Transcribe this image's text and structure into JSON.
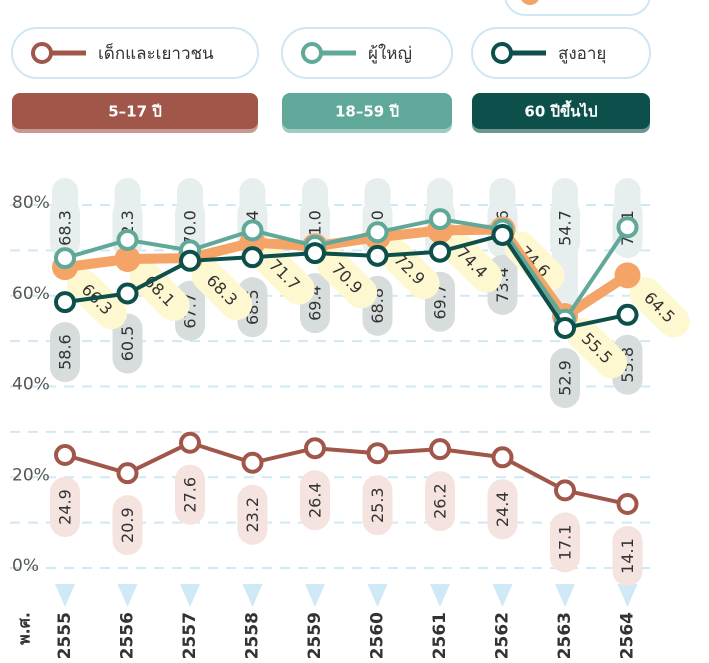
{
  "chart_data": {
    "type": "line",
    "x_label": "พ.ศ.",
    "categories": [
      "2555",
      "2556",
      "2557",
      "2558",
      "2559",
      "2560",
      "2561",
      "2562",
      "2563",
      "2564"
    ],
    "series": [
      {
        "name": "เด็กและเยาวชน",
        "group": "5–17 ปี",
        "color": "#a0574a",
        "values": [
          24.9,
          20.9,
          27.6,
          23.2,
          26.4,
          25.3,
          26.2,
          24.4,
          17.1,
          14.1
        ],
        "value_labels": [
          "24.9",
          "20.9",
          "27.6",
          "23.2",
          "26.4",
          "25.3",
          "26.2",
          "24.4",
          "17.1",
          "14.1"
        ]
      },
      {
        "name": "ผู้ใหญ่",
        "group": "18–59 ปี",
        "color": "#5fa89a",
        "values": [
          68.3,
          72.3,
          70.0,
          74.4,
          71.0,
          74.0,
          76.9,
          74.6,
          54.7,
          75.1
        ],
        "value_labels": [
          "68.3",
          "72.3",
          "70.0",
          "74.4",
          "71.0",
          "74.0",
          "76.9",
          "74.6",
          "54.7",
          "75.1"
        ]
      },
      {
        "name": "สูงอายุ",
        "group": "60 ปีขึ้นไป",
        "color": "#0d4f4a",
        "values": [
          58.6,
          60.5,
          67.7,
          68.5,
          69.4,
          68.8,
          69.7,
          73.4,
          52.9,
          55.8
        ],
        "value_labels": [
          "58.6",
          "60.5",
          "67.7",
          "68.5",
          "69.4",
          "68.8",
          "69.7",
          "73.4",
          "52.9",
          "55.8"
        ]
      },
      {
        "color": "#f4a466",
        "values": [
          66.3,
          68.1,
          68.3,
          71.7,
          70.9,
          72.9,
          74.4,
          74.6,
          55.5,
          64.5
        ],
        "value_labels": [
          "66.3",
          "68.1",
          "68.3",
          "71.7",
          "70.9",
          "72.9",
          "74.4",
          "74.6",
          "55.5",
          "64.5"
        ]
      }
    ],
    "ylim": [
      0,
      80
    ],
    "yticks": [
      {
        "value": 0,
        "label": "0%"
      },
      {
        "value": 20,
        "label": "20%"
      },
      {
        "value": 40,
        "label": "40%"
      },
      {
        "value": 60,
        "label": "60%"
      },
      {
        "value": 80,
        "label": "80%"
      }
    ],
    "grid": true
  }
}
